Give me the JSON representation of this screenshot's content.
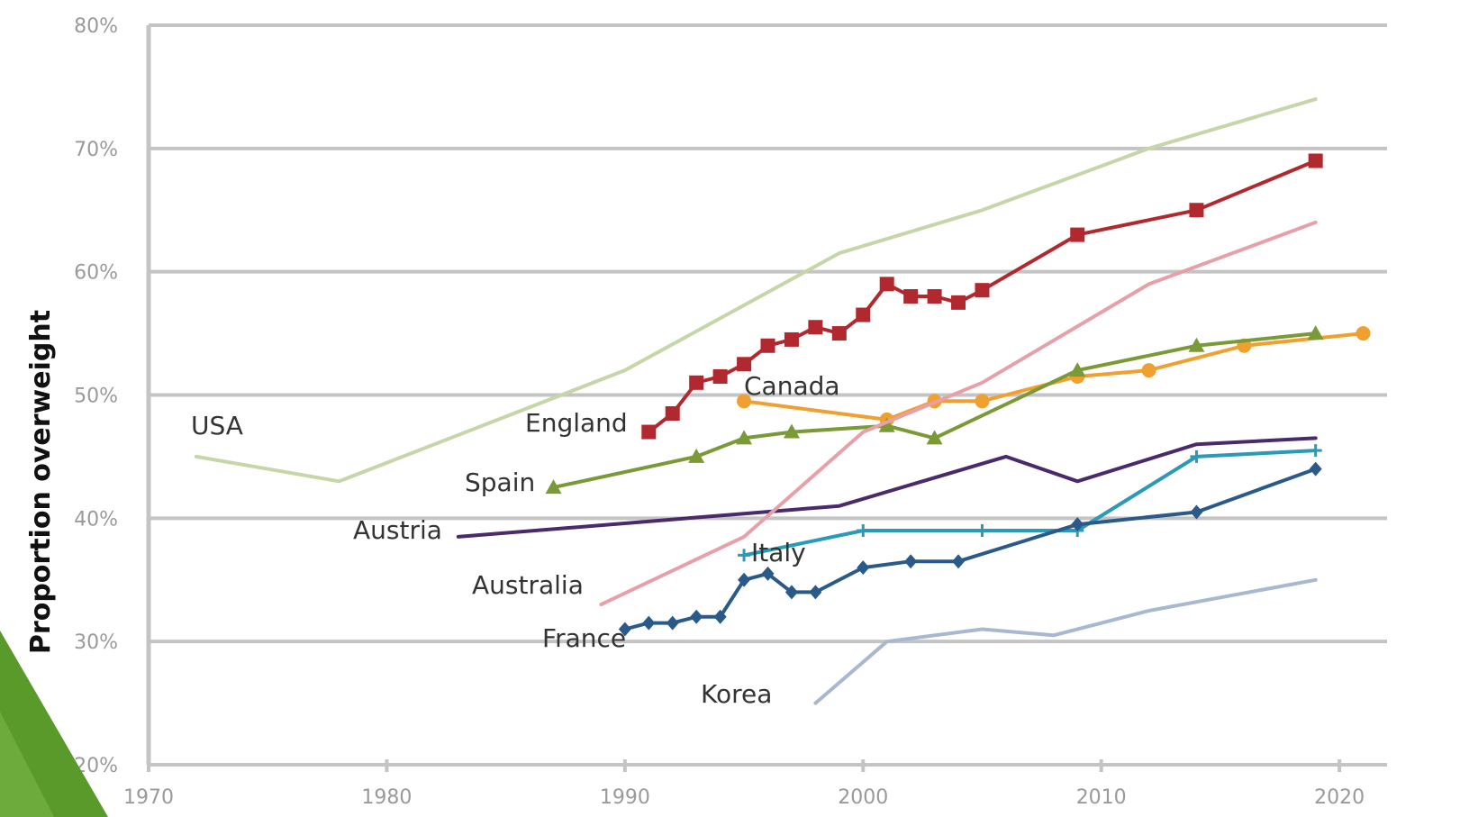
{
  "chart_data": {
    "type": "line",
    "title": "",
    "xlabel": "",
    "ylabel": "Proportion overweight",
    "xlim": [
      1970,
      2022
    ],
    "ylim": [
      20,
      80
    ],
    "x_ticks": [
      1970,
      1980,
      1990,
      2000,
      2010,
      2020
    ],
    "y_ticks": [
      20,
      30,
      40,
      50,
      60,
      70,
      80
    ],
    "y_tick_labels": [
      "20%",
      "30%",
      "40%",
      "50%",
      "60%",
      "70%",
      "80%"
    ],
    "grid": "horizontal",
    "legend": "none (series labeled inline)",
    "series": [
      {
        "name": "USA",
        "color": "#c5d6a8",
        "marker": "none",
        "x": [
          1972,
          1978,
          1990,
          1999,
          2005,
          2012,
          2019
        ],
        "y": [
          45,
          43,
          52,
          61.5,
          65,
          70,
          74
        ]
      },
      {
        "name": "England",
        "color": "#b1282e",
        "marker": "square",
        "x": [
          1991,
          1992,
          1993,
          1994,
          1995,
          1996,
          1997,
          1998,
          1999,
          2000,
          2001,
          2002,
          2003,
          2004,
          2005,
          2009,
          2014,
          2019
        ],
        "y": [
          47,
          48.5,
          51,
          51.5,
          52.5,
          54,
          54.5,
          55.5,
          55,
          56.5,
          59,
          58,
          58,
          57.5,
          58.5,
          63,
          65,
          69
        ]
      },
      {
        "name": "Canada",
        "color": "#f0a030",
        "marker": "circle",
        "x": [
          1995,
          2001,
          2003,
          2005,
          2009,
          2012,
          2016,
          2021
        ],
        "y": [
          49.5,
          48,
          49.5,
          49.5,
          51.5,
          52,
          54,
          55
        ]
      },
      {
        "name": "Spain",
        "color": "#7a9a38",
        "marker": "triangle",
        "x": [
          1987,
          1993,
          1995,
          1997,
          2001,
          2003,
          2009,
          2014,
          2019
        ],
        "y": [
          42.5,
          45,
          46.5,
          47,
          47.5,
          46.5,
          52,
          54,
          55
        ]
      },
      {
        "name": "Austria",
        "color": "#4a2a6a",
        "marker": "none",
        "x": [
          1983,
          1999,
          2006,
          2009,
          2014,
          2019
        ],
        "y": [
          38.5,
          41,
          45,
          43,
          46,
          46.5
        ]
      },
      {
        "name": "Australia",
        "color": "#e8a0a8",
        "marker": "none",
        "x": [
          1989,
          1995,
          2000,
          2005,
          2012,
          2019
        ],
        "y": [
          33,
          38.5,
          47,
          51,
          59,
          64
        ]
      },
      {
        "name": "Italy",
        "color": "#2a9ab8",
        "marker": "plus",
        "x": [
          1995,
          2000,
          2005,
          2009,
          2014,
          2019
        ],
        "y": [
          37,
          39,
          39,
          39,
          45,
          45.5
        ]
      },
      {
        "name": "France",
        "color": "#2a5a8a",
        "marker": "diamond",
        "x": [
          1990,
          1991,
          1992,
          1993,
          1994,
          1995,
          1996,
          1997,
          1998,
          2000,
          2002,
          2004,
          2009,
          2014,
          2019
        ],
        "y": [
          31,
          31.5,
          31.5,
          32,
          32,
          35,
          35.5,
          34,
          34,
          36,
          36.5,
          36.5,
          39.5,
          40.5,
          44
        ]
      },
      {
        "name": "Korea",
        "color": "#a8b8d0",
        "marker": "none",
        "x": [
          1998,
          2001,
          2005,
          2008,
          2012,
          2019
        ],
        "y": [
          25,
          30,
          31,
          30.5,
          32.5,
          35
        ]
      }
    ],
    "annotations": [
      {
        "text": "USA",
        "series": "USA"
      },
      {
        "text": "England",
        "series": "England"
      },
      {
        "text": "Canada",
        "series": "Canada"
      },
      {
        "text": "Spain",
        "series": "Spain"
      },
      {
        "text": "Austria",
        "series": "Austria"
      },
      {
        "text": "Australia",
        "series": "Australia"
      },
      {
        "text": "Italy",
        "series": "Italy"
      },
      {
        "text": "France",
        "series": "France"
      },
      {
        "text": "Korea",
        "series": "Korea"
      }
    ]
  },
  "decoration": {
    "corner_color": "#5a9a2a"
  }
}
